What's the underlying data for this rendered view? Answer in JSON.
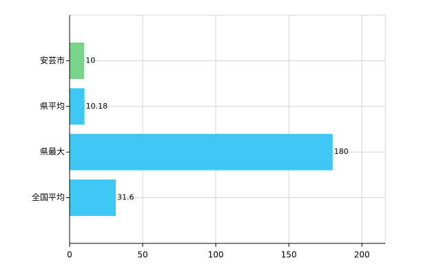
{
  "chart_data": {
    "type": "bar",
    "orientation": "horizontal",
    "categories": [
      "安芸市",
      "県平均",
      "県最大",
      "全国平均"
    ],
    "values": [
      10,
      10.18,
      180,
      31.6
    ],
    "colors": [
      "#77d48a",
      "#3ec6f5",
      "#3ec6f5",
      "#3ec6f5"
    ],
    "xlim": [
      0,
      216
    ],
    "xticks": [
      0,
      50,
      100,
      150,
      200
    ],
    "grid": true
  }
}
